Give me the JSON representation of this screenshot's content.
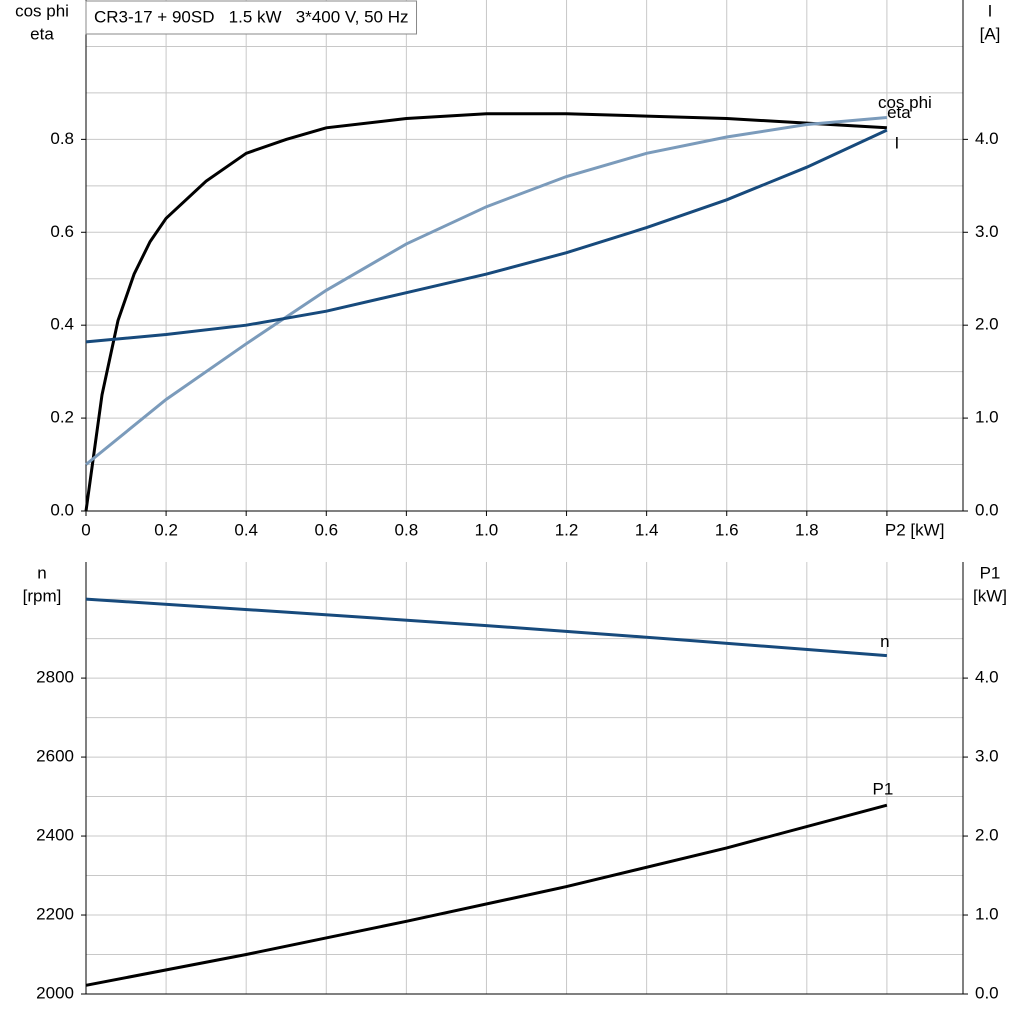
{
  "chart_data": [
    {
      "type": "line",
      "title": "CR3-17 + 90SD   1.5 kW   3*400 V, 50 Hz",
      "y_label": [
        "cos phi",
        "eta"
      ],
      "y2_label": [
        "I",
        "[A]"
      ],
      "xlim": [
        0,
        2.19
      ],
      "xticks": [
        0,
        0.2,
        0.4,
        0.6,
        0.8,
        {
          "value": 1,
          "label": "1.0"
        },
        1.2,
        1.4,
        1.6,
        1.8,
        {
          "value": 2,
          "label": "P2 [kW]"
        }
      ],
      "ylim": [
        0,
        1.1
      ],
      "yticks": [
        {
          "value": 0,
          "label": "0.0"
        },
        0.2,
        0.4,
        0.6,
        0.8
      ],
      "y_minor_grid": [
        0.1,
        0.3,
        0.5,
        0.7,
        0.9,
        1.0
      ],
      "y2lim": [
        0,
        5.5
      ],
      "y2ticks": [
        {
          "value": 0,
          "label": "0.0"
        },
        {
          "value": 1,
          "label": "1.0"
        },
        {
          "value": 2,
          "label": "2.0"
        },
        {
          "value": 3,
          "label": "3.0"
        },
        {
          "value": 4,
          "label": "4.0"
        }
      ],
      "grid": true,
      "series": [
        {
          "name": "eta",
          "color": "#000000",
          "x": [
            0,
            0.04,
            0.08,
            0.12,
            0.16,
            0.2,
            0.3,
            0.4,
            0.5,
            0.6,
            0.8,
            1.0,
            1.2,
            1.4,
            1.6,
            1.8,
            2.0
          ],
          "values": [
            0,
            0.25,
            0.41,
            0.51,
            0.58,
            0.63,
            0.71,
            0.77,
            0.8,
            0.825,
            0.845,
            0.855,
            0.855,
            0.85,
            0.845,
            0.835,
            0.825
          ]
        },
        {
          "name": "cos phi",
          "color": "#7b9bbb",
          "x": [
            0,
            0.2,
            0.4,
            0.6,
            0.8,
            1.0,
            1.2,
            1.4,
            1.6,
            1.8,
            2.0
          ],
          "values": [
            0.1,
            0.24,
            0.36,
            0.475,
            0.575,
            0.655,
            0.72,
            0.77,
            0.805,
            0.832,
            0.847
          ]
        },
        {
          "name": "I",
          "color": "#174a7c",
          "axis": "y2",
          "x": [
            0,
            0.2,
            0.4,
            0.6,
            0.8,
            1.0,
            1.2,
            1.4,
            1.6,
            1.8,
            2.0
          ],
          "values": [
            1.82,
            1.9,
            2.0,
            2.15,
            2.35,
            2.55,
            2.78,
            3.05,
            3.35,
            3.7,
            4.1
          ]
        }
      ]
    },
    {
      "type": "line",
      "y_label": [
        "n",
        "[rpm]"
      ],
      "y2_label": [
        "P1",
        "[kW]"
      ],
      "xlim": [
        0,
        2.19
      ],
      "xgrid": [
        0.2,
        0.4,
        0.6,
        0.8,
        1.0,
        1.2,
        1.4,
        1.6,
        1.8,
        2.0
      ],
      "ylim": [
        2000,
        3094
      ],
      "yticks": [
        2000,
        2200,
        2400,
        2600,
        2800
      ],
      "y_minor_grid": [
        2100,
        2300,
        2500,
        2700,
        2900,
        3000
      ],
      "y2lim": [
        0,
        5.47
      ],
      "y2ticks": [
        {
          "value": 0,
          "label": "0.0"
        },
        {
          "value": 1,
          "label": "1.0"
        },
        {
          "value": 2,
          "label": "2.0"
        },
        {
          "value": 3,
          "label": "3.0"
        },
        {
          "value": 4,
          "label": "4.0"
        }
      ],
      "grid": true,
      "series": [
        {
          "name": "n",
          "color": "#174a7c",
          "x": [
            0,
            0.5,
            1.0,
            1.5,
            2.0
          ],
          "values": [
            3000,
            2967,
            2933,
            2896,
            2857
          ]
        },
        {
          "name": "P1",
          "color": "#000000",
          "axis": "y2",
          "x": [
            0,
            0.4,
            0.8,
            1.2,
            1.6,
            2.0
          ],
          "values": [
            0.11,
            0.5,
            0.92,
            1.36,
            1.85,
            2.39
          ]
        }
      ]
    }
  ]
}
